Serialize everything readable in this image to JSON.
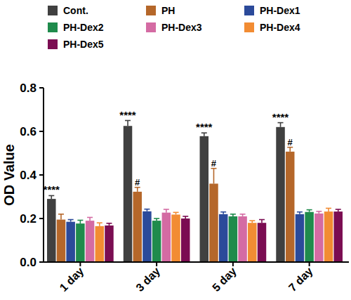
{
  "chart_data": {
    "type": "bar",
    "y_label": "OD Value",
    "categories": [
      "1 day",
      "3 day",
      "5 day",
      "7 day"
    ],
    "series": [
      {
        "name": "Cont.",
        "color": "#404040",
        "values": [
          0.29,
          0.625,
          0.578,
          0.62
        ],
        "errors": [
          0.015,
          0.025,
          0.015,
          0.02
        ],
        "annotations": [
          "****",
          "****",
          "****",
          "****"
        ]
      },
      {
        "name": "PH",
        "color": "#b5672a",
        "values": [
          0.195,
          0.323,
          0.36,
          0.507
        ],
        "errors": [
          0.025,
          0.02,
          0.07,
          0.02
        ],
        "annotations": [
          null,
          "#",
          "#",
          "#"
        ]
      },
      {
        "name": "PH-Dex1",
        "color": "#2b4a9a",
        "values": [
          0.185,
          0.233,
          0.22,
          0.22
        ],
        "errors": [
          0.01,
          0.01,
          0.01,
          0.01
        ]
      },
      {
        "name": "PH-Dex2",
        "color": "#1f8b4c",
        "values": [
          0.177,
          0.19,
          0.21,
          0.23
        ],
        "errors": [
          0.015,
          0.01,
          0.01,
          0.01
        ]
      },
      {
        "name": "PH-Dex3",
        "color": "#d46ba3",
        "values": [
          0.19,
          0.227,
          0.21,
          0.223
        ],
        "errors": [
          0.015,
          0.015,
          0.01,
          0.01
        ]
      },
      {
        "name": "PH-Dex4",
        "color": "#f28c33",
        "values": [
          0.165,
          0.218,
          0.18,
          0.232
        ],
        "errors": [
          0.015,
          0.01,
          0.01,
          0.015
        ]
      },
      {
        "name": "PH-Dex5",
        "color": "#7b0d52",
        "values": [
          0.168,
          0.2,
          0.18,
          0.232
        ],
        "errors": [
          0.01,
          0.01,
          0.015,
          0.01
        ]
      }
    ],
    "ylim": [
      0,
      0.8
    ],
    "yticks": [
      {
        "value": 0,
        "label": "0.0"
      },
      {
        "value": 0.2,
        "label": "0.2"
      },
      {
        "value": 0.4,
        "label": "0.4"
      },
      {
        "value": 0.6,
        "label": "0.6"
      },
      {
        "value": 0.8,
        "label": "0.8"
      }
    ],
    "grid": false,
    "legend": "top"
  }
}
